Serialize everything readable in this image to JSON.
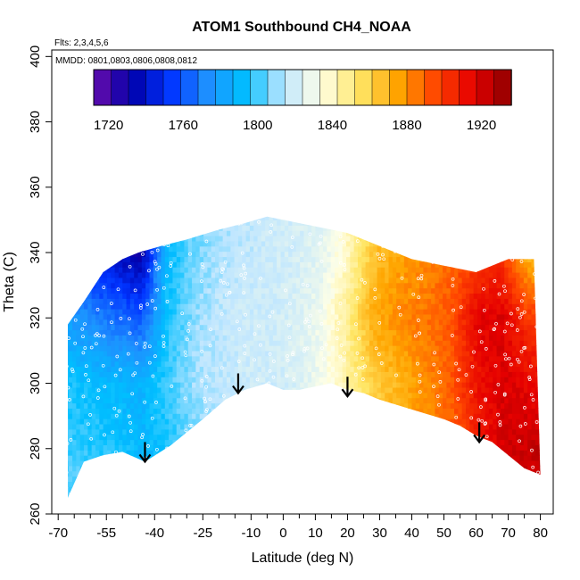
{
  "chart_data": {
    "type": "heatmap",
    "title": "ATOM1 Southbound CH4_NOAA",
    "annotations": {
      "flights": "Flts: 2,3,4,5,6",
      "dates": "MMDD: 0801,0803,0806,0808,0812"
    },
    "xlabel": "Latitude (deg N)",
    "ylabel": "Theta (C)",
    "xlim": [
      -72,
      84
    ],
    "ylim": [
      260,
      402
    ],
    "xticks": [
      -70,
      -55,
      -40,
      -25,
      -10,
      0,
      10,
      20,
      30,
      40,
      50,
      60,
      70,
      80
    ],
    "xminorticks": [
      -65,
      -60,
      -50,
      -45,
      -35,
      -30,
      -20,
      -15,
      -5,
      5,
      15,
      25,
      35,
      45,
      55,
      65,
      75
    ],
    "yticks": [
      260,
      280,
      300,
      320,
      340,
      360,
      380,
      400
    ],
    "colorbar": {
      "min": 1712,
      "max": 1936,
      "ticks": [
        1720,
        1760,
        1800,
        1840,
        1880,
        1920
      ],
      "colors": [
        "#6a0dad",
        "#0000aa",
        "#0033ff",
        "#1e90ff",
        "#00bfff",
        "#bfe6ff",
        "#ffffe6",
        "#ffe666",
        "#ffa500",
        "#ff4500",
        "#e60000",
        "#8b0000"
      ]
    },
    "outline_top": [
      [
        -67,
        318
      ],
      [
        -62,
        325
      ],
      [
        -56,
        334
      ],
      [
        -50,
        338
      ],
      [
        -45,
        340
      ],
      [
        -38,
        342
      ],
      [
        -30,
        344
      ],
      [
        -20,
        347
      ],
      [
        -12,
        349
      ],
      [
        -5,
        351
      ],
      [
        0,
        350
      ],
      [
        10,
        348
      ],
      [
        20,
        346
      ],
      [
        30,
        342
      ],
      [
        40,
        338
      ],
      [
        50,
        336
      ],
      [
        60,
        334
      ],
      [
        70,
        338
      ],
      [
        78,
        338
      ]
    ],
    "outline_bottom": [
      [
        -67,
        265
      ],
      [
        -62,
        276
      ],
      [
        -56,
        278
      ],
      [
        -50,
        279
      ],
      [
        -43,
        276
      ],
      [
        -35,
        281
      ],
      [
        -25,
        289
      ],
      [
        -18,
        295
      ],
      [
        -12,
        298
      ],
      [
        -5,
        300
      ],
      [
        0,
        298
      ],
      [
        5,
        298
      ],
      [
        10,
        299
      ],
      [
        15,
        300
      ],
      [
        20,
        298
      ],
      [
        25,
        297
      ],
      [
        30,
        295
      ],
      [
        40,
        292
      ],
      [
        50,
        289
      ],
      [
        55,
        287
      ],
      [
        60,
        284
      ],
      [
        65,
        282
      ],
      [
        70,
        278
      ],
      [
        75,
        274
      ],
      [
        80,
        272
      ]
    ],
    "field_nodes": {
      "lat": [
        -68,
        -60,
        -52,
        -44,
        -36,
        -28,
        -20,
        -12,
        -4,
        4,
        12,
        20,
        28,
        36,
        44,
        52,
        60,
        68,
        76,
        82
      ],
      "theta": [
        260,
        280,
        300,
        320,
        340,
        352
      ],
      "ch4": [
        [
          1805,
          1805,
          1803,
          1795,
          1790,
          1800,
          1808,
          1810,
          1812,
          1815,
          1820,
          1832,
          1852,
          1865,
          1872,
          1880,
          1900,
          1912,
          1920,
          1925
        ],
        [
          1800,
          1798,
          1796,
          1790,
          1795,
          1805,
          1812,
          1815,
          1815,
          1818,
          1825,
          1835,
          1860,
          1872,
          1880,
          1888,
          1905,
          1920,
          1922,
          1925
        ],
        [
          1795,
          1793,
          1790,
          1788,
          1800,
          1810,
          1815,
          1818,
          1818,
          1822,
          1830,
          1845,
          1862,
          1870,
          1880,
          1890,
          1910,
          1918,
          1915,
          1910
        ],
        [
          1780,
          1772,
          1765,
          1760,
          1795,
          1808,
          1815,
          1818,
          1818,
          1822,
          1830,
          1848,
          1872,
          1880,
          1885,
          1892,
          1915,
          1918,
          1900,
          1895
        ],
        [
          1760,
          1745,
          1738,
          1730,
          1792,
          1805,
          1812,
          1815,
          1818,
          1820,
          1825,
          1840,
          1865,
          1875,
          1880,
          1888,
          1895,
          1900,
          1870,
          1860
        ],
        [
          1760,
          1745,
          1738,
          1730,
          1792,
          1805,
          1812,
          1815,
          1818,
          1820,
          1825,
          1840,
          1865,
          1875,
          1880,
          1888,
          1895,
          1900,
          1870,
          1860
        ]
      ]
    },
    "tropopause_arrows": [
      {
        "lat": -43,
        "theta": 276
      },
      {
        "lat": -14,
        "theta": 297
      },
      {
        "lat": 20,
        "theta": 296
      },
      {
        "lat": 61,
        "theta": 282
      }
    ]
  }
}
